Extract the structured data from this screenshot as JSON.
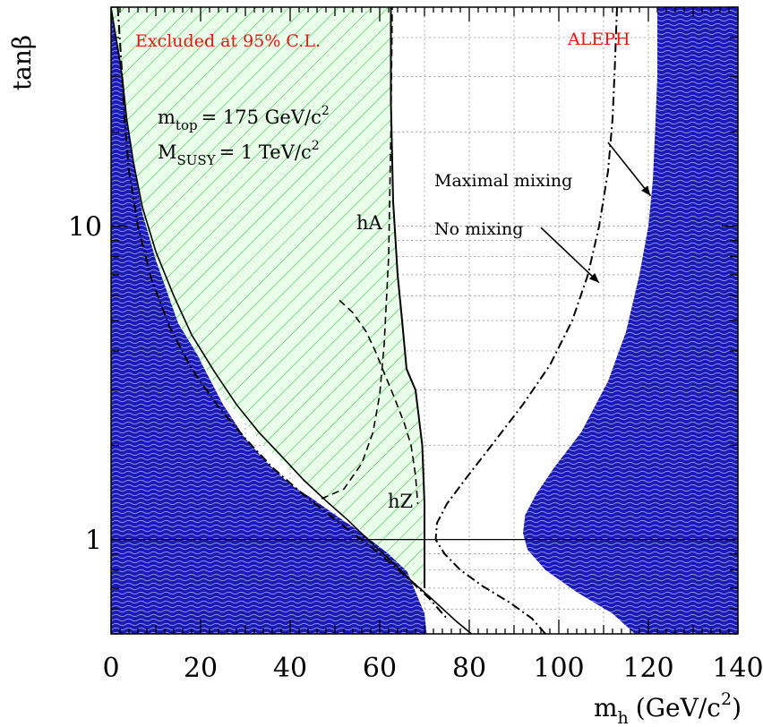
{
  "chart_data": {
    "type": "line",
    "xlabel_main": "m",
    "xlabel_sub": "h",
    "xlabel_unit": "(GeV/c",
    "xlabel_sup": "2",
    "xlabel_close": ")",
    "ylabel": "tanβ",
    "xlim": [
      0,
      140
    ],
    "ylim": [
      0.5,
      50
    ],
    "y_scale": "log",
    "grid": true,
    "x_ticks": [
      0,
      20,
      40,
      60,
      80,
      100,
      120,
      140
    ],
    "x_tick_labels": [
      "0",
      "20",
      "40",
      "60",
      "80",
      "100",
      "120",
      "140"
    ],
    "y_ticks": [
      1,
      10
    ],
    "y_tick_labels": [
      "1",
      "10"
    ],
    "annotations": {
      "excluded": "Excluded at 95% C.L.",
      "experiment": "ALEPH",
      "mtop_main": "m",
      "mtop_sub": "top",
      "mtop_rest": "= 175 GeV/c",
      "mtop_sup": "2",
      "msusy_main": "M",
      "msusy_sub": "SUSY",
      "msusy_rest": "= 1 TeV/c",
      "msusy_sup": "2",
      "maximal": "Maximal mixing",
      "nomixing": "No mixing",
      "hA": "hA",
      "hZ": "hZ"
    },
    "colors": {
      "theory_excluded": "#1a1ab4",
      "hatch": "#2fbf3f",
      "hatch_bg": "#e9ffe9",
      "line": "#000000",
      "red": "#ee1111"
    },
    "series": {
      "theory_left_boundary": {
        "x": [
          70.5,
          70,
          66,
          62,
          56,
          50,
          45,
          40,
          35,
          30,
          25,
          20,
          15,
          12,
          9,
          7,
          5,
          4,
          3,
          2
        ],
        "y": [
          0.5,
          0.58,
          0.8,
          0.9,
          1.05,
          1.2,
          1.35,
          1.5,
          1.75,
          2.1,
          2.7,
          3.7,
          5.7,
          8,
          12,
          17,
          26,
          34,
          42,
          50
        ]
      },
      "theory_right_boundary": {
        "x": [
          117,
          112,
          104,
          97,
          93,
          92,
          92.5,
          95,
          99,
          105,
          111,
          115,
          118,
          120,
          121,
          121.5,
          122,
          122
        ],
        "y": [
          0.5,
          0.58,
          0.68,
          0.8,
          0.93,
          1.05,
          1.2,
          1.4,
          1.7,
          2.2,
          3.2,
          4.6,
          7,
          10,
          14,
          20,
          30,
          50
        ]
      },
      "maximal_boundary": {
        "x": [
          0,
          2.5,
          3.5,
          5,
          7,
          10,
          14,
          18,
          23,
          28,
          33,
          38,
          43,
          48,
          53,
          58,
          62,
          67,
          72,
          77,
          80.5
        ],
        "y": [
          50,
          30,
          22,
          16,
          11.5,
          8.3,
          6.0,
          4.5,
          3.45,
          2.7,
          2.2,
          1.85,
          1.55,
          1.33,
          1.15,
          0.98,
          0.87,
          0.74,
          0.64,
          0.55,
          0.5
        ]
      },
      "excl_region": {
        "x": [
          0,
          62.5,
          62.5,
          63,
          64,
          65,
          66,
          68,
          69.5,
          70,
          70,
          62,
          55,
          45,
          35,
          25,
          15,
          10,
          7,
          5,
          3.5,
          2
        ],
        "y": [
          50,
          50,
          25,
          12,
          7,
          5,
          3.5,
          3,
          2,
          1.3,
          0.7,
          0.9,
          1.1,
          1.45,
          1.95,
          2.85,
          4.9,
          7.8,
          11,
          16,
          22,
          35
        ]
      },
      "hA_line": {
        "x": [
          62.5,
          62.5,
          63,
          64,
          65,
          66,
          68,
          69.5,
          70,
          70
        ],
        "y": [
          50,
          25,
          12,
          7,
          5,
          3.5,
          3,
          2,
          1.3,
          0.7
        ]
      },
      "hZ_line": {
        "x": [
          47,
          52,
          56,
          58.5,
          60,
          61,
          62,
          62.5,
          62.8
        ],
        "y": [
          1.35,
          1.45,
          1.75,
          2.2,
          2.9,
          4.2,
          8,
          20,
          50
        ]
      },
      "hZ_bump": {
        "x": [
          51,
          54,
          57,
          59,
          61,
          63,
          65.5,
          67,
          68,
          68.5
        ],
        "y": [
          5.8,
          5.3,
          4.6,
          4.0,
          3.4,
          2.9,
          2.35,
          2.0,
          1.6,
          1.3
        ]
      },
      "dashdot_left": {
        "x": [
          1.5,
          2.5,
          3,
          4,
          6,
          9,
          13,
          18,
          24,
          30,
          36,
          42,
          48,
          54,
          60,
          66,
          71,
          75
        ],
        "y": [
          50,
          30,
          22,
          15,
          10,
          6.8,
          4.8,
          3.5,
          2.65,
          2.1,
          1.7,
          1.43,
          1.22,
          1.05,
          0.9,
          0.76,
          0.65,
          0.56
        ]
      },
      "nomixing_line": {
        "x": [
          97,
          94,
          89,
          83,
          78,
          74.5,
          72.5,
          72.8,
          75,
          79,
          85,
          92,
          98,
          103,
          106.5,
          109,
          111,
          112,
          112.5,
          113
        ],
        "y": [
          0.5,
          0.56,
          0.63,
          0.71,
          0.8,
          0.9,
          1.0,
          1.13,
          1.3,
          1.55,
          2.0,
          2.7,
          3.6,
          5.0,
          7.0,
          10,
          15,
          22,
          32,
          50
        ]
      },
      "maximal_arrow": {
        "x": [
          111,
          120.5
        ],
        "y": [
          18.5,
          12.5
        ]
      },
      "nomixing_arrow": {
        "x": [
          96,
          109
        ],
        "y": [
          9.9,
          6.6
        ]
      }
    }
  }
}
